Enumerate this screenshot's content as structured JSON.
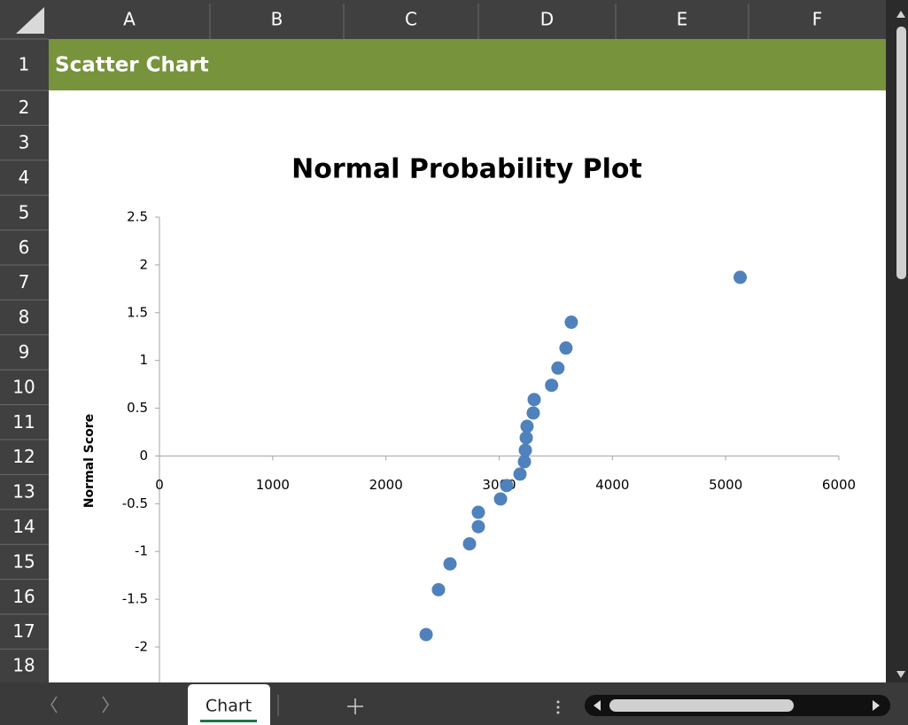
{
  "sheet": {
    "columns": [
      "A",
      "B",
      "C",
      "D",
      "E",
      "F"
    ],
    "rows": [
      1,
      2,
      3,
      4,
      5,
      6,
      7,
      8,
      9,
      10,
      11,
      12,
      13,
      14,
      15,
      16,
      17,
      18
    ],
    "cells": {
      "A1": "Scatter Chart"
    }
  },
  "tabs": [
    "Chart"
  ],
  "chart_data": {
    "type": "scatter",
    "title": "Normal Probability Plot",
    "y_label": "Normal Score",
    "x": [
      2355,
      2464,
      2566,
      2738,
      2816,
      2816,
      3012,
      3066,
      3184,
      3223,
      3231,
      3239,
      3246,
      3301,
      3309,
      3463,
      3519,
      3590,
      3637,
      5128
    ],
    "values": [
      -1.87,
      -1.4,
      -1.13,
      -0.92,
      -0.74,
      -0.59,
      -0.45,
      -0.31,
      -0.19,
      -0.06,
      0.06,
      0.19,
      0.31,
      0.45,
      0.59,
      0.74,
      0.92,
      1.13,
      1.4,
      1.87
    ],
    "color": "#4f81bd",
    "xlim": [
      0,
      6000
    ],
    "xticks": [
      0,
      1000,
      2000,
      3000,
      4000,
      5000,
      6000
    ],
    "ylim": [
      -2.5,
      2.5
    ],
    "yticks": [
      2.5,
      2,
      1.5,
      1,
      0.5,
      0,
      -0.5,
      -1,
      -1.5,
      -2
    ]
  }
}
